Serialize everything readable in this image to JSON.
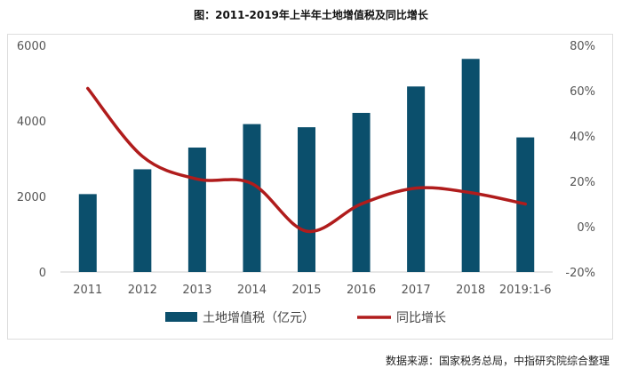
{
  "chart_data": {
    "type": "bar+line",
    "title": "图：2011-2019年上半年土地增值税及同比增长",
    "categories": [
      "2011",
      "2012",
      "2013",
      "2014",
      "2015",
      "2016",
      "2017",
      "2018",
      "2019:1-6"
    ],
    "series": [
      {
        "name": "土地增值税（亿元）",
        "type": "bar",
        "axis": "left",
        "color": "#0b4f6c",
        "values": [
          2062,
          2719,
          3294,
          3915,
          3832,
          4212,
          4911,
          5641,
          3563
        ]
      },
      {
        "name": "同比增长",
        "type": "line",
        "axis": "right",
        "color": "#b01c1c",
        "values": [
          61,
          31,
          21,
          19,
          -2,
          10,
          17,
          15,
          10
        ]
      }
    ],
    "left_axis": {
      "range": [
        0,
        6000
      ],
      "ticks": [
        "0",
        "2000",
        "4000",
        "6000"
      ]
    },
    "right_axis": {
      "range": [
        -20,
        80
      ],
      "ticks": [
        "-20%",
        "0%",
        "20%",
        "40%",
        "60%",
        "80%"
      ]
    },
    "grid": false,
    "legend": "bottom"
  },
  "source": "数据来源：国家税务总局，中指研究院综合整理"
}
